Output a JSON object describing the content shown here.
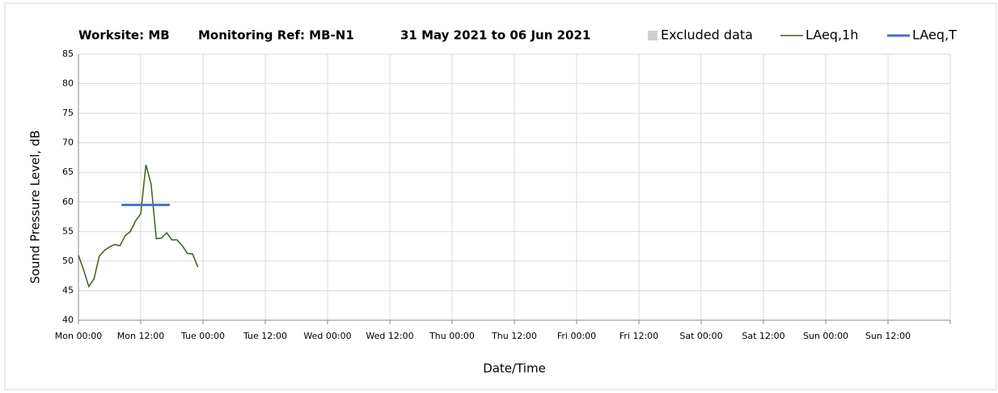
{
  "chart_data": {
    "type": "line",
    "title_parts": [
      "Worksite: MB",
      "Monitoring Ref: MB-N1",
      "31 May 2021 to 06 Jun 2021"
    ],
    "y_label": "Sound Pressure Level, dB",
    "x_label": "Date/Time",
    "xlim": [
      0,
      168
    ],
    "xticks": [
      {
        "value": 0,
        "label": "Mon 00:00"
      },
      {
        "value": 12,
        "label": "Mon 12:00"
      },
      {
        "value": 24,
        "label": "Tue 00:00"
      },
      {
        "value": 36,
        "label": "Tue 12:00"
      },
      {
        "value": 48,
        "label": "Wed 00:00"
      },
      {
        "value": 60,
        "label": "Wed 12:00"
      },
      {
        "value": 72,
        "label": "Thu 00:00"
      },
      {
        "value": 84,
        "label": "Thu 12:00"
      },
      {
        "value": 96,
        "label": "Fri 00:00"
      },
      {
        "value": 108,
        "label": "Fri 12:00"
      },
      {
        "value": 120,
        "label": "Sat 00:00"
      },
      {
        "value": 132,
        "label": "Sat 12:00"
      },
      {
        "value": 144,
        "label": "Sun 00:00"
      },
      {
        "value": 156,
        "label": "Sun 12:00"
      },
      {
        "value": 168,
        "label": ""
      }
    ],
    "ylim": [
      40,
      85
    ],
    "yticks": [
      40,
      45,
      50,
      55,
      60,
      65,
      70,
      75,
      80,
      85
    ],
    "grid": true,
    "series": [
      {
        "name": "Excluded data",
        "color": "#d0d0d0",
        "x": [],
        "values": []
      },
      {
        "name": "LAeq,1h",
        "color": "#3d5e1f",
        "x": [
          0,
          1,
          2,
          3,
          4,
          5,
          6,
          7,
          8,
          9,
          10,
          11,
          12,
          13,
          14,
          15,
          16,
          17,
          18,
          19,
          20,
          21,
          22,
          23
        ],
        "values": [
          51,
          48.5,
          45.7,
          47,
          50.8,
          51.8,
          52.4,
          52.8,
          52.6,
          54.3,
          55,
          56.8,
          58,
          66.3,
          63,
          53.8,
          53.9,
          54.8,
          53.6,
          53.6,
          52.6,
          51.3,
          51.2,
          49
        ]
      },
      {
        "name": "LAeq,T",
        "color": "#4472c4",
        "x": [
          8.3,
          17.6
        ],
        "values": [
          59.5,
          59.5
        ]
      }
    ]
  }
}
